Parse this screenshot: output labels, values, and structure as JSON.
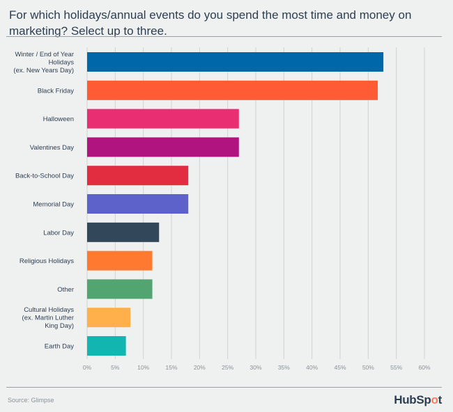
{
  "chart_data": {
    "type": "bar",
    "orientation": "horizontal",
    "title": "For which holidays/annual events do you spend the most time and money on marketing? Select up to three.",
    "categories": [
      [
        "Winter / End of Year",
        "Holidays",
        "(ex. New Years Day)"
      ],
      [
        "Black Friday"
      ],
      [
        "Halloween"
      ],
      [
        "Valentines Day"
      ],
      [
        "Back-to-School Day"
      ],
      [
        "Memorial Day"
      ],
      [
        "Labor Day"
      ],
      [
        "Religious Holidays"
      ],
      [
        "Other"
      ],
      [
        "Cultural Holidays",
        "(ex. Martin Luther",
        "King Day)"
      ],
      [
        "Earth Day"
      ]
    ],
    "values": [
      52.7,
      51.7,
      27,
      27,
      18,
      18,
      12.8,
      11.6,
      11.6,
      7.7,
      6.9
    ],
    "colors": [
      "#0068a8",
      "#ff5c35",
      "#ea2e72",
      "#b0157f",
      "#e12d3f",
      "#5c62c9",
      "#33475b",
      "#ff7a30",
      "#52a571",
      "#ffb04a",
      "#13b5b1"
    ],
    "xlim": [
      0,
      60
    ],
    "xticks": [
      "0%",
      "5%",
      "10%",
      "15%",
      "20%",
      "25%",
      "30%",
      "35%",
      "40%",
      "45%",
      "50%",
      "55%",
      "60%"
    ],
    "grid": true,
    "xlabel": "",
    "ylabel": ""
  },
  "footer": {
    "source": "Source: Glimpse",
    "logo": "HubSpot"
  }
}
